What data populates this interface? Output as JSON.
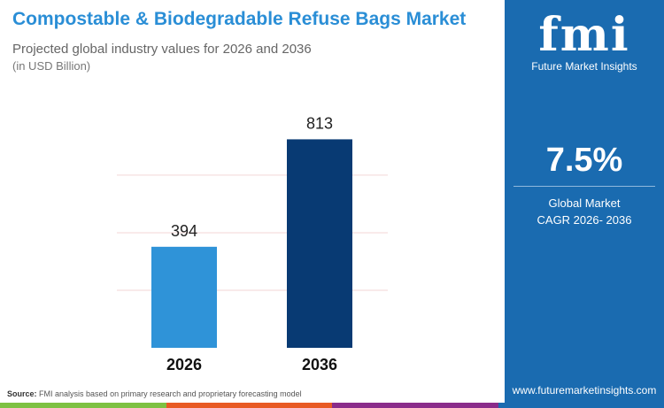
{
  "header": {
    "title": "Compostable & Biodegradable Refuse Bags Market",
    "subtitle": "Projected global industry values for 2026 and 2036",
    "unit": "(in USD Billion)"
  },
  "chart_data": {
    "type": "bar",
    "categories": [
      "2026",
      "2036"
    ],
    "values": [
      394,
      813
    ],
    "data_labels": [
      "394",
      "813"
    ],
    "colors": [
      "#2f93d8",
      "#083a73"
    ],
    "ylim": [
      0,
      880
    ],
    "grid": true,
    "title": "",
    "xlabel": "",
    "ylabel": ""
  },
  "panel": {
    "logo_text": "fmi",
    "logo_subtext": "Future Market Insights",
    "cagr_value": "7.5%",
    "cagr_label_1": "Global Market",
    "cagr_label_2": "CAGR 2026- 2036",
    "url": "www.futuremarketinsights.com",
    "bg_color": "#1a6bb0"
  },
  "footer": {
    "source_label": "Source:",
    "source_text": "FMI analysis based on primary research and proprietary forecasting model",
    "stripe_colors": [
      "#7dc142",
      "#e85a24",
      "#8a2c8a",
      "#1a6bb0"
    ]
  }
}
